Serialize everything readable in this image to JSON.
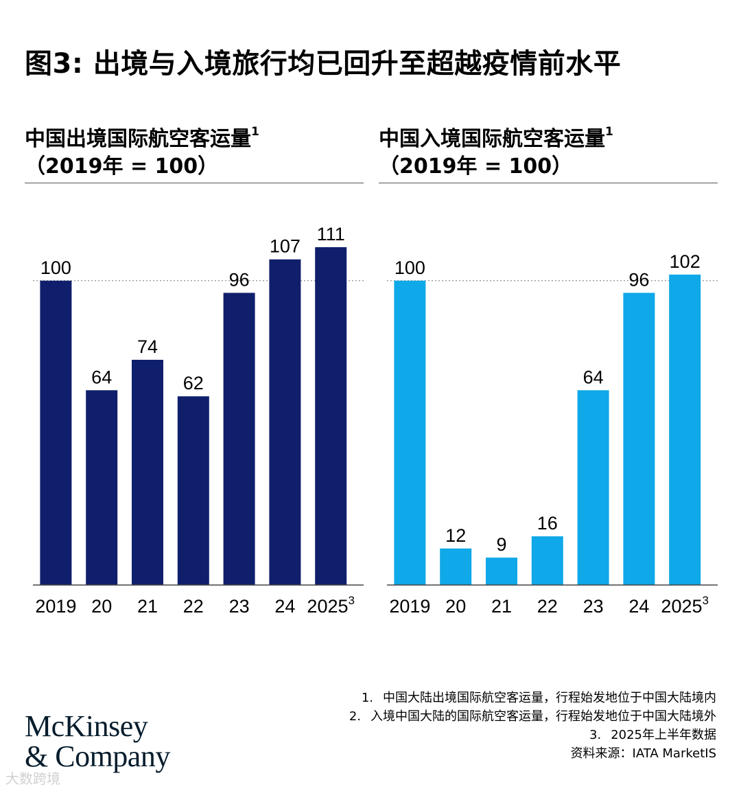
{
  "title": "图3: 出境与入境旅行均已回升至超越疫情前水平",
  "chart_data": [
    {
      "type": "bar",
      "title": "中国出境国际航空客运量",
      "title_sup": "1",
      "subtitle": "（2019年 = 100）",
      "categories": [
        "2019",
        "20",
        "21",
        "22",
        "23",
        "24",
        "2025"
      ],
      "category_sups": [
        "",
        "",
        "",
        "",
        "",
        "",
        "3"
      ],
      "values": [
        100,
        64,
        74,
        62,
        96,
        107,
        111
      ],
      "baseline": 100,
      "ylim": [
        0,
        111
      ],
      "xlabel": "",
      "ylabel": "",
      "color": "#0f1f6b"
    },
    {
      "type": "bar",
      "title": "中国入境国际航空客运量",
      "title_sup": "1",
      "subtitle": "（2019年 = 100）",
      "categories": [
        "2019",
        "20",
        "21",
        "22",
        "23",
        "24",
        "2025"
      ],
      "category_sups": [
        "",
        "",
        "",
        "",
        "",
        "",
        "3"
      ],
      "values": [
        100,
        12,
        9,
        16,
        64,
        96,
        102
      ],
      "baseline": 100,
      "ylim": [
        0,
        111
      ],
      "xlabel": "",
      "ylabel": "",
      "color": "#0fa8e8"
    }
  ],
  "footnotes": [
    {
      "num": "1.",
      "text": "中国大陆出境国际航空客运量，行程始发地位于中国大陆境内"
    },
    {
      "num": "2.",
      "text": "入境中国大陆的国际航空客运量，行程始发地位于中国大陆境外"
    },
    {
      "num": "3.",
      "text": "2025年上半年数据"
    }
  ],
  "source": "资料来源：IATA MarketIS",
  "logo": {
    "line1": "McKinsey",
    "line2": "& Company"
  },
  "watermark": "大数跨境"
}
